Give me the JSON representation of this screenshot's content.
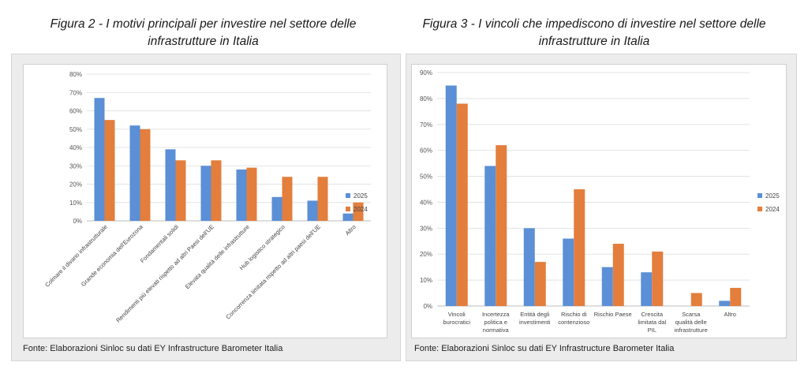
{
  "figures": [
    {
      "title_line1": "Figura 2 - I motivi principali per investire nel settore delle",
      "title_line2": "infrastrutture in Italia",
      "source": "Fonte: Elaborazioni Sinloc su dati EY Infrastructure Barometer Italia"
    },
    {
      "title_line1": "Figura 3 -  I vincoli che impediscono di investire nel settore delle",
      "title_line2": "infrastrutture in Italia",
      "source": "Fonte: Elaborazioni Sinloc su dati EY Infrastructure Barometer Italia"
    }
  ],
  "chart_data": [
    {
      "type": "bar",
      "categories": [
        "Colmare il divario infrastrutturale",
        "Grande economia dell'Eurozona",
        "Fondamentali solidi",
        "Rendimenti più elevati rispetto ad altri Paesi dell'UE",
        "Elevata qualità delle infrastrutture",
        "Hub logistico strategico",
        "Concorrenza limitata rispetto ad altri paesi dell'UE",
        "Altro"
      ],
      "series": [
        {
          "name": "2025",
          "color": "#5b8fd6",
          "values": [
            67,
            52,
            39,
            30,
            28,
            13,
            11,
            4
          ]
        },
        {
          "name": "2024",
          "color": "#e37e3c",
          "values": [
            55,
            50,
            33,
            33,
            29,
            24,
            24,
            10
          ]
        }
      ],
      "ylim": [
        0,
        80
      ],
      "yticks": [
        "0%",
        "10%",
        "20%",
        "30%",
        "40%",
        "50%",
        "60%",
        "70%",
        "80%"
      ],
      "legend": "right",
      "grid": true
    },
    {
      "type": "bar",
      "categories": [
        [
          "Vincoli",
          "burocratici"
        ],
        [
          "Incertezza",
          "politica e",
          "normativa"
        ],
        [
          "Entità degli",
          "investimenti"
        ],
        [
          "Rischio di",
          "contenzioso"
        ],
        [
          "Rischio Paese"
        ],
        [
          "Crescita",
          "limitata dal",
          "PIL"
        ],
        [
          "Scarsa",
          "qualità delle",
          "infrastrutture"
        ],
        [
          "Altro"
        ]
      ],
      "series": [
        {
          "name": "2025",
          "color": "#5b8fd6",
          "values": [
            85,
            54,
            30,
            26,
            15,
            13,
            0,
            2
          ]
        },
        {
          "name": "2024",
          "color": "#e37e3c",
          "values": [
            78,
            62,
            17,
            45,
            24,
            21,
            5,
            7
          ]
        }
      ],
      "ylim": [
        0,
        90
      ],
      "yticks": [
        "0%",
        "10%",
        "20%",
        "30%",
        "40%",
        "50%",
        "60%",
        "70%",
        "80%",
        "90%"
      ],
      "legend": "right",
      "grid": true
    }
  ]
}
